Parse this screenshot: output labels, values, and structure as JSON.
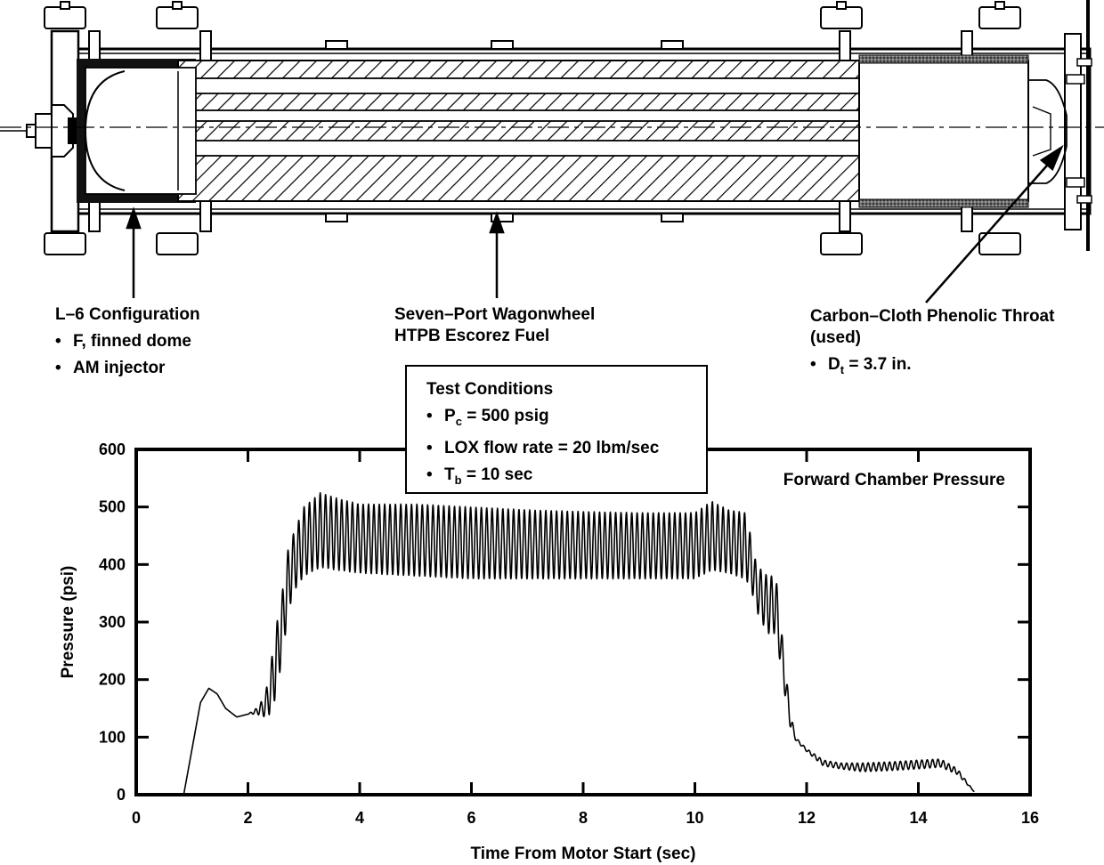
{
  "diagram": {
    "left_callout": {
      "title": "L–6 Configuration",
      "bullets": [
        "F, finned dome",
        "AM injector"
      ]
    },
    "center_callout": {
      "line1": "Seven–Port Wagonwheel",
      "line2": "HTPB Escorez Fuel"
    },
    "right_callout": {
      "line1": "Carbon–Cloth Phenolic Throat",
      "line2": "(used)",
      "bullet_main": "D",
      "bullet_sub": "t",
      "bullet_rest": " = 3.7 in."
    }
  },
  "test_conditions": {
    "title": "Test Conditions",
    "pc_main": "P",
    "pc_sub": "c",
    "pc_rest": " = 500 psig",
    "lox": "LOX flow rate = 20 lbm/sec",
    "tb_main": "T",
    "tb_sub": "b",
    "tb_rest": " = 10 sec"
  },
  "chart_data": {
    "type": "line",
    "title": "",
    "xlabel": "Time From Motor Start (sec)",
    "ylabel": "Pressure (psi)",
    "xlim": [
      0,
      16
    ],
    "ylim": [
      0,
      600
    ],
    "xticks": [
      0,
      2,
      4,
      6,
      8,
      10,
      12,
      14,
      16
    ],
    "yticks": [
      0,
      100,
      200,
      300,
      400,
      500,
      600
    ],
    "grid": false,
    "series": [
      {
        "name": "Forward Chamber Pressure",
        "color": "#000000",
        "envelope": [
          [
            0.85,
            0,
            0
          ],
          [
            1.0,
            80,
            80
          ],
          [
            1.15,
            160,
            160
          ],
          [
            1.3,
            185,
            185
          ],
          [
            1.45,
            175,
            175
          ],
          [
            1.6,
            150,
            150
          ],
          [
            1.8,
            135,
            135
          ],
          [
            2.0,
            140,
            140
          ],
          [
            2.15,
            140,
            150
          ],
          [
            2.3,
            135,
            170
          ],
          [
            2.4,
            140,
            220
          ],
          [
            2.5,
            170,
            290
          ],
          [
            2.6,
            230,
            340
          ],
          [
            2.7,
            300,
            420
          ],
          [
            2.8,
            350,
            450
          ],
          [
            3.0,
            380,
            500
          ],
          [
            3.3,
            395,
            525
          ],
          [
            3.6,
            390,
            515
          ],
          [
            4.0,
            385,
            505
          ],
          [
            5.0,
            380,
            505
          ],
          [
            6.0,
            375,
            500
          ],
          [
            7.0,
            375,
            495
          ],
          [
            8.0,
            375,
            492
          ],
          [
            9.0,
            375,
            490
          ],
          [
            10.0,
            375,
            490
          ],
          [
            10.3,
            390,
            510
          ],
          [
            10.6,
            385,
            495
          ],
          [
            10.9,
            375,
            490
          ],
          [
            11.0,
            360,
            450
          ],
          [
            11.1,
            320,
            400
          ],
          [
            11.3,
            280,
            380
          ],
          [
            11.45,
            280,
            380
          ],
          [
            11.6,
            180,
            240
          ],
          [
            11.7,
            120,
            150
          ],
          [
            11.8,
            95,
            100
          ],
          [
            12.0,
            75,
            80
          ],
          [
            12.3,
            50,
            60
          ],
          [
            12.6,
            45,
            55
          ],
          [
            13.0,
            40,
            55
          ],
          [
            13.5,
            42,
            57
          ],
          [
            14.0,
            45,
            60
          ],
          [
            14.4,
            48,
            62
          ],
          [
            14.7,
            35,
            45
          ],
          [
            15.0,
            5,
            5
          ]
        ]
      }
    ],
    "annotations": [
      "Forward Chamber Pressure"
    ]
  }
}
